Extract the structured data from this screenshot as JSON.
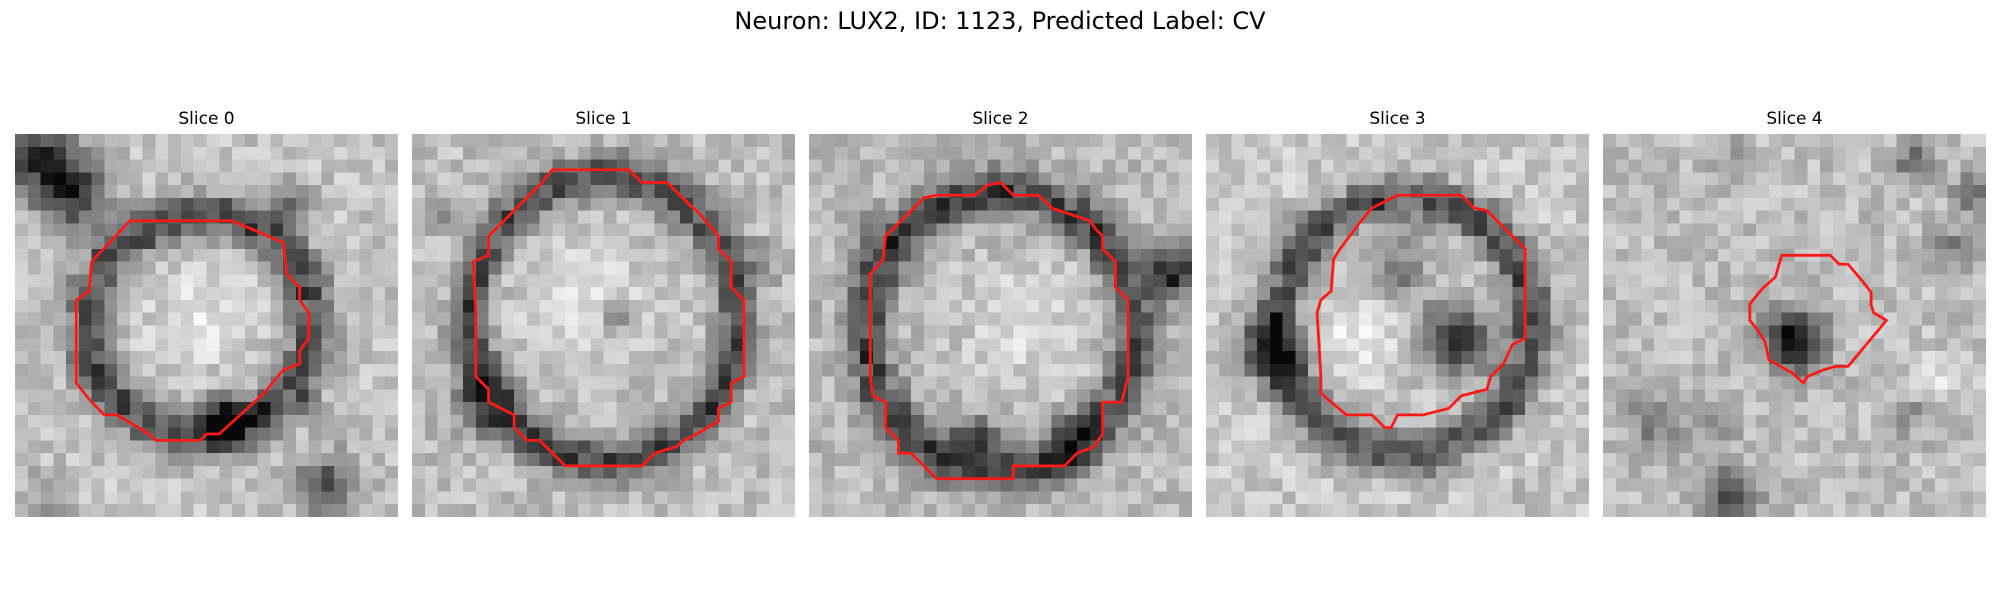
{
  "figure": {
    "title": "Neuron: LUX2, ID: 1123, Predicted Label: CV"
  },
  "outline_color": "#ff1a1a",
  "colormap": "grayscale",
  "panels": [
    {
      "label": "Slice 0"
    },
    {
      "label": "Slice 1"
    },
    {
      "label": "Slice 2"
    },
    {
      "label": "Slice 3"
    },
    {
      "label": "Slice 4"
    }
  ]
}
